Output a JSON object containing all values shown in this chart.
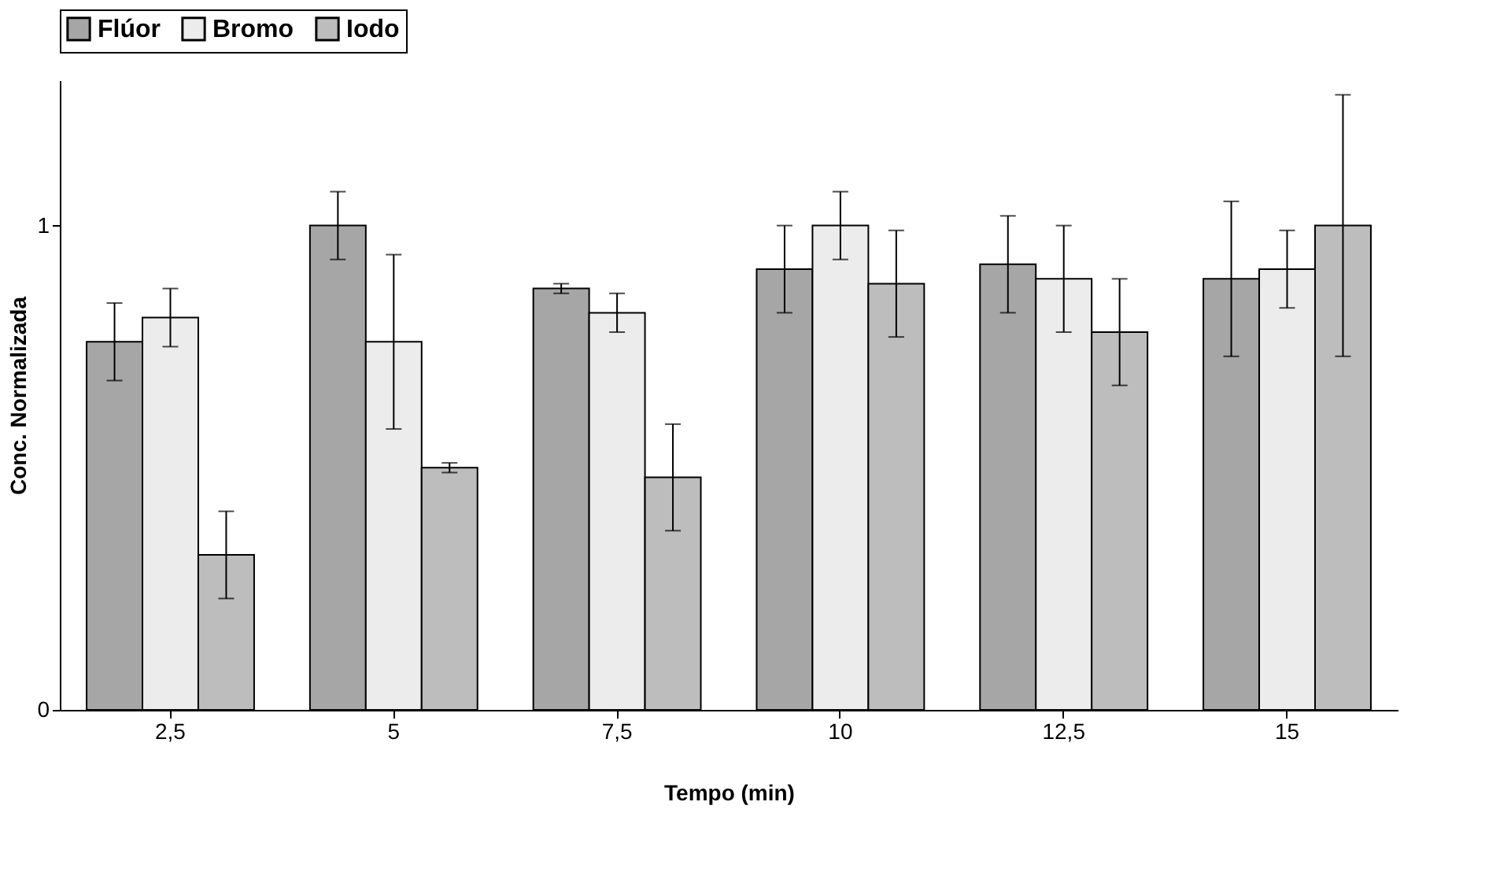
{
  "chart_data": {
    "type": "bar",
    "xlabel": "Tempo (min)",
    "ylabel": "Conc. Normalizada",
    "categories": [
      "2,5",
      "5",
      "7,5",
      "10",
      "12,5",
      "15"
    ],
    "series": [
      {
        "name": "Flúor",
        "color": "#a6a6a6",
        "values": [
          0.76,
          1.0,
          0.87,
          0.91,
          0.92,
          0.89
        ],
        "errors": [
          0.08,
          0.07,
          0.01,
          0.09,
          0.1,
          0.16
        ]
      },
      {
        "name": "Bromo",
        "color": "#ececec",
        "values": [
          0.81,
          0.76,
          0.82,
          1.0,
          0.89,
          0.91
        ],
        "errors": [
          0.06,
          0.18,
          0.04,
          0.07,
          0.11,
          0.08
        ]
      },
      {
        "name": "Iodo",
        "color": "#bdbdbd",
        "values": [
          0.32,
          0.5,
          0.48,
          0.88,
          0.78,
          1.0
        ],
        "errors": [
          0.09,
          0.01,
          0.11,
          0.11,
          0.11,
          0.27
        ]
      }
    ],
    "ylim": [
      0,
      1.3
    ],
    "yticks": [
      0,
      1
    ],
    "grid": false,
    "legend": "top"
  }
}
